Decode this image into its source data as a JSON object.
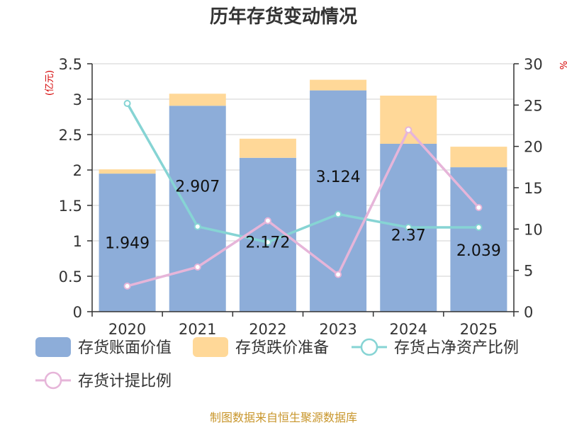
{
  "chart_data": {
    "type": "bar",
    "title": "历年存货变动情况",
    "categories": [
      "2020",
      "2021",
      "2022",
      "2023",
      "2024",
      "2025"
    ],
    "y_left": {
      "unit": "(亿元)",
      "ylim": [
        0,
        3.5
      ],
      "ticks": [
        "0",
        "0.5",
        "1",
        "1.5",
        "2",
        "2.5",
        "3",
        "3.5"
      ]
    },
    "y_right": {
      "unit": "%",
      "ylim": [
        0,
        30
      ],
      "ticks": [
        "0",
        "5",
        "10",
        "15",
        "20",
        "25",
        "30"
      ]
    },
    "series": [
      {
        "name": "存货账面价值",
        "kind": "bar",
        "axis": "left",
        "color": "#8dadd9",
        "values": [
          1.949,
          2.907,
          2.172,
          3.124,
          2.37,
          2.039
        ],
        "labels": [
          "1.949",
          "2.907",
          "2.172",
          "3.124",
          "2.37",
          "2.039"
        ]
      },
      {
        "name": "存货跌价准备",
        "kind": "bar-stack",
        "axis": "left",
        "color": "#ffd898",
        "values": [
          0.06,
          0.17,
          0.27,
          0.15,
          0.68,
          0.29
        ]
      },
      {
        "name": "存货占净资产比例",
        "kind": "line",
        "axis": "right",
        "color": "#86d4d4",
        "values": [
          25.2,
          10.3,
          8.4,
          11.8,
          10.2,
          10.2
        ]
      },
      {
        "name": "存货计提比例",
        "kind": "line",
        "axis": "right",
        "color": "#e6b5d9",
        "values": [
          3.1,
          5.4,
          11.0,
          4.5,
          22.0,
          12.6
        ]
      }
    ],
    "grid": true,
    "legend_position": "bottom"
  },
  "footer": {
    "source": "制图数据来自恒生聚源数据库"
  }
}
